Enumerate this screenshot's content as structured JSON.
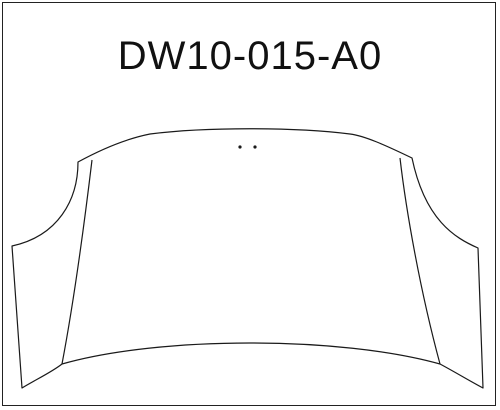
{
  "part": {
    "code": "DW10-015-A0"
  },
  "colors": {
    "line": "#1a1a1a",
    "background": "#ffffff",
    "frame": "#222222"
  }
}
